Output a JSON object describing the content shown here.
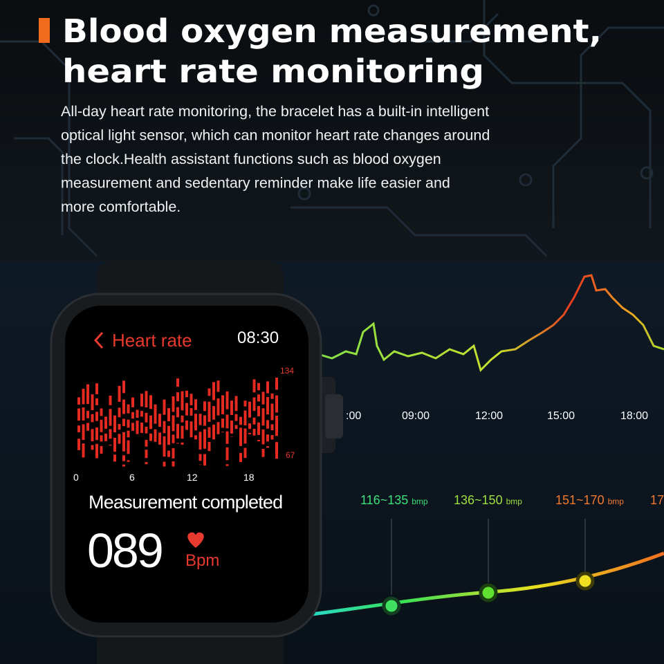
{
  "header": {
    "title_lines": [
      "Blood oxygen measurement,",
      "heart rate monitoring"
    ],
    "paragraph_lines": [
      "All-day heart rate monitoring, the bracelet has a built-in intelligent",
      "optical light sensor, which can monitor heart rate changes around",
      "the clock.Health assistant functions such as blood oxygen",
      "measurement and sedentary reminder make life easier and",
      "more comfortable."
    ]
  },
  "watch": {
    "screen_title": "Heart rate",
    "time": "08:30",
    "graph_max": "134",
    "graph_min": "67",
    "graph_hours": [
      "0",
      "6",
      "12",
      "18"
    ],
    "status": "Measurement completed",
    "reading": "089",
    "unit": "Bpm"
  },
  "trend": {
    "times": [
      ":00",
      "09:00",
      "12:00",
      "15:00",
      "18:00"
    ],
    "zones": [
      {
        "range": "116~135",
        "unit": "bmp"
      },
      {
        "range": "136~150",
        "unit": "bmp"
      },
      {
        "range": "151~170",
        "unit": "bmp"
      },
      {
        "range": "17"
      }
    ]
  }
}
